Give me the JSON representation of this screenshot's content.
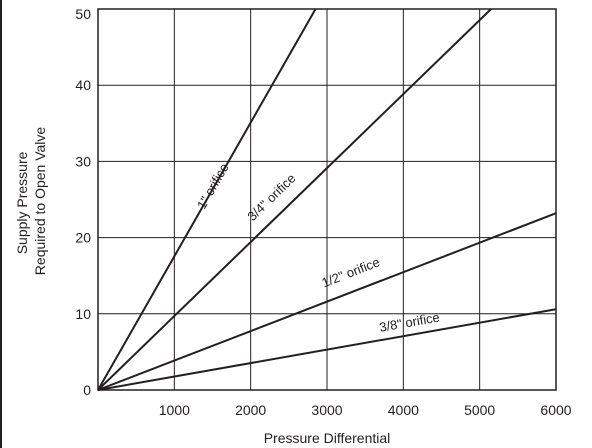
{
  "chart_data": {
    "type": "line",
    "title": "",
    "xlabel": "Pressure Differential",
    "ylabel_lines": [
      "Supply Pressure",
      "Required to Open Valve"
    ],
    "xlim": [
      0,
      6000
    ],
    "ylim": [
      0,
      50
    ],
    "x_ticks": [
      0,
      1000,
      2000,
      3000,
      4000,
      5000,
      6000
    ],
    "x_tick_labels": [
      "",
      "1000",
      "2000",
      "3000",
      "4000",
      "5000",
      "6000"
    ],
    "y_ticks": [
      0,
      10,
      20,
      30,
      40,
      50
    ],
    "y_tick_labels": [
      "0",
      "10",
      "20",
      "30",
      "40",
      "50"
    ],
    "grid": true,
    "legend": "none (series labelled inline on lines)",
    "series": [
      {
        "name": "1\" orifice",
        "x": [
          0,
          2850
        ],
        "y": [
          0,
          50
        ]
      },
      {
        "name": "3/4\" orifice",
        "x": [
          0,
          5150
        ],
        "y": [
          0,
          50
        ]
      },
      {
        "name": "1/2\" orifice",
        "x": [
          0,
          6000
        ],
        "y": [
          0,
          23.2
        ]
      },
      {
        "name": "3/8\" orifice",
        "x": [
          0,
          6000
        ],
        "y": [
          0,
          10.6
        ]
      }
    ],
    "label_positions_data": [
      {
        "x": 1600,
        "y": 26.2
      },
      {
        "x": 2350,
        "y": 24.5
      },
      {
        "x": 3350,
        "y": 14.4
      },
      {
        "x": 4100,
        "y": 7.8
      }
    ]
  },
  "colors": {
    "ink": "#231f20",
    "background": "#ffffff"
  }
}
